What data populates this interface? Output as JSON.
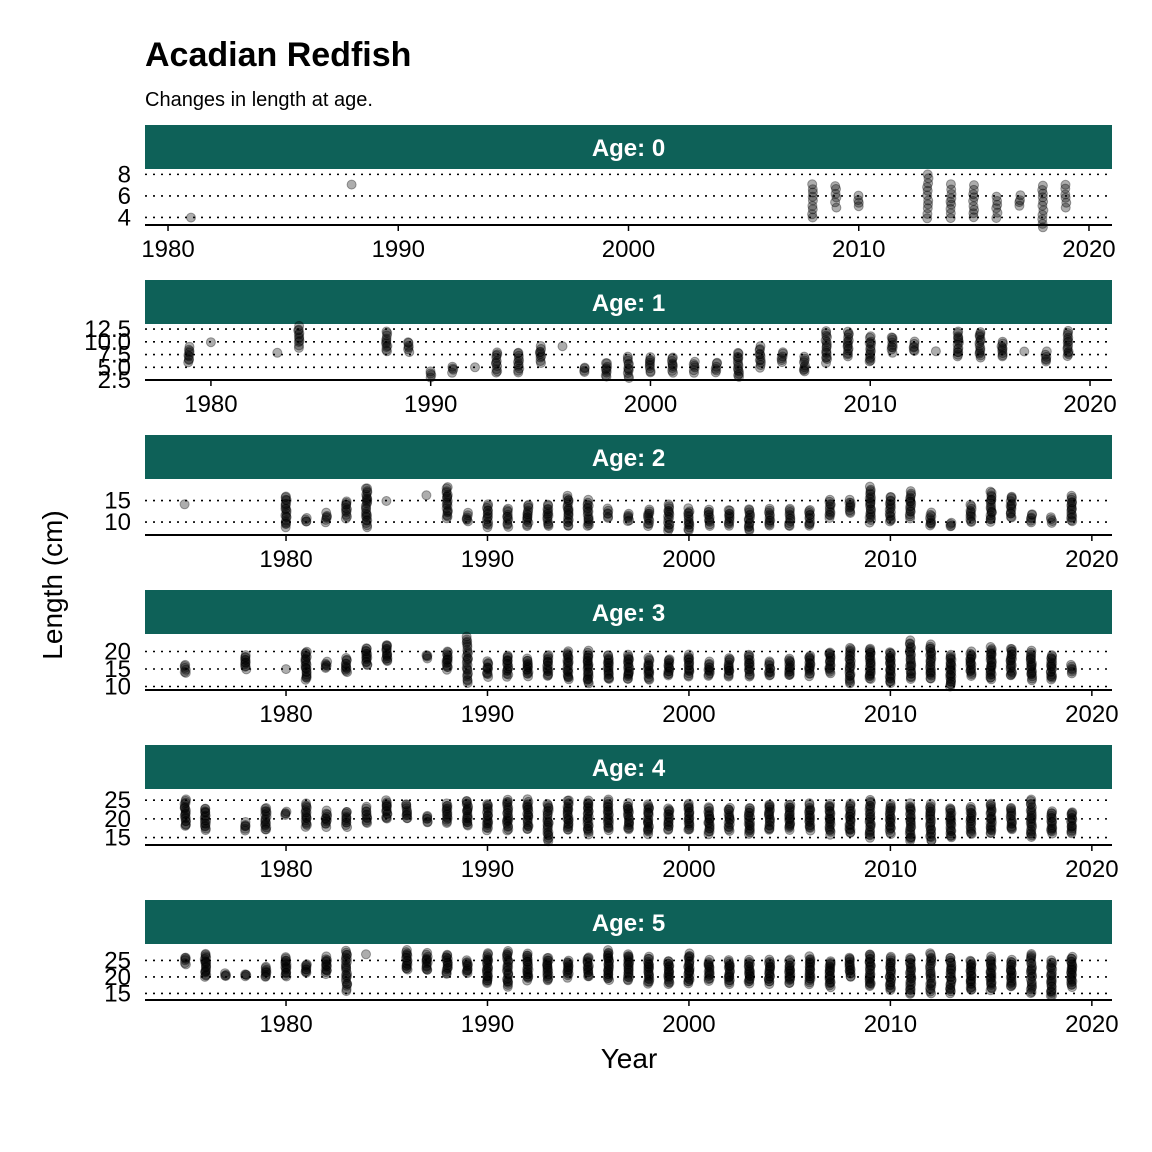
{
  "chart_data": {
    "type": "scatter",
    "title": "Acadian Redfish",
    "subtitle": "Changes in length at age.",
    "xlabel": "Year",
    "ylabel": "Length (cm)",
    "grid": "horizontal dotted",
    "strip_color": "#0E6158",
    "point_color": "#000000",
    "panels": [
      {
        "label": "Age: 0",
        "xlim": [
          1979,
          2021
        ],
        "ylim": [
          3.3,
          8.5
        ],
        "xticks": [
          1980,
          1990,
          2000,
          2010,
          2020
        ],
        "yticks": [
          4,
          6,
          8
        ],
        "ytick_labels": [
          "4",
          "6",
          "8"
        ],
        "years": [
          1981,
          1988,
          2008,
          2009,
          2010,
          2013,
          2014,
          2015,
          2016,
          2017,
          2018,
          2019
        ],
        "mins": [
          4,
          7,
          4,
          5,
          5,
          4,
          4,
          4,
          4,
          5,
          3,
          5
        ],
        "maxs": [
          4,
          7,
          7,
          7,
          6,
          8,
          7,
          7,
          6,
          6,
          7,
          7
        ]
      },
      {
        "label": "Age: 1",
        "xlim": [
          1977,
          2021
        ],
        "ylim": [
          2.5,
          13.5
        ],
        "xticks": [
          1980,
          1990,
          2000,
          2010,
          2020
        ],
        "yticks": [
          2.5,
          5.0,
          7.5,
          10.0,
          12.5
        ],
        "ytick_labels": [
          "2.5",
          "5.0",
          "7.5",
          "10.0",
          "12.5"
        ],
        "years": [
          1979,
          1980,
          1983,
          1984,
          1988,
          1989,
          1990,
          1991,
          1992,
          1993,
          1994,
          1995,
          1996,
          1997,
          1998,
          1999,
          2000,
          2001,
          2002,
          2003,
          2004,
          2005,
          2006,
          2007,
          2008,
          2009,
          2010,
          2011,
          2012,
          2013,
          2014,
          2015,
          2016,
          2017,
          2018,
          2019
        ],
        "mins": [
          6,
          10,
          8,
          9,
          8,
          8,
          3,
          4,
          5,
          4,
          4,
          6,
          9,
          4,
          3,
          3,
          4,
          4,
          4,
          4,
          3,
          5,
          6,
          4,
          6,
          7,
          6,
          8,
          8,
          8,
          7,
          7,
          7,
          8,
          6,
          7
        ],
        "maxs": [
          9,
          10,
          8,
          13,
          12,
          10,
          4,
          5,
          5,
          8,
          8,
          9,
          9,
          5,
          6,
          7,
          7,
          7,
          6,
          6,
          8,
          9,
          8,
          7,
          12,
          12,
          11,
          11,
          10,
          8,
          12,
          12,
          10,
          8,
          8,
          12
        ]
      },
      {
        "label": "Age: 2",
        "xlim": [
          1973,
          2021
        ],
        "ylim": [
          7,
          20
        ],
        "xticks": [
          1980,
          1990,
          2000,
          2010,
          2020
        ],
        "yticks": [
          10,
          15
        ],
        "ytick_labels": [
          "10",
          "15"
        ],
        "years": [
          1975,
          1980,
          1981,
          1982,
          1983,
          1984,
          1985,
          1987,
          1988,
          1989,
          1990,
          1991,
          1992,
          1993,
          1994,
          1995,
          1996,
          1997,
          1998,
          1999,
          2000,
          2001,
          2002,
          2003,
          2004,
          2005,
          2006,
          2007,
          2008,
          2009,
          2010,
          2011,
          2012,
          2013,
          2014,
          2015,
          2016,
          2017,
          2018,
          2019
        ],
        "mins": [
          14,
          9,
          10,
          10,
          11,
          9,
          15,
          16,
          11,
          10,
          9,
          9,
          9,
          9,
          9,
          9,
          11,
          10,
          9,
          8,
          8,
          9,
          9,
          8,
          9,
          9,
          9,
          11,
          12,
          10,
          10,
          11,
          9,
          9,
          10,
          10,
          11,
          10,
          10,
          10
        ],
        "maxs": [
          14,
          16,
          11,
          12,
          15,
          18,
          15,
          16,
          18,
          12,
          14,
          13,
          14,
          14,
          16,
          15,
          13,
          12,
          13,
          14,
          13,
          13,
          13,
          13,
          13,
          13,
          13,
          15,
          15,
          18,
          16,
          17,
          12,
          10,
          14,
          17,
          16,
          12,
          11,
          16
        ]
      },
      {
        "label": "Age: 3",
        "xlim": [
          1973,
          2021
        ],
        "ylim": [
          9,
          25
        ],
        "xticks": [
          1980,
          1990,
          2000,
          2010,
          2020
        ],
        "yticks": [
          10,
          15,
          20
        ],
        "ytick_labels": [
          "10",
          "15",
          "20"
        ],
        "years": [
          1975,
          1978,
          1980,
          1981,
          1982,
          1983,
          1984,
          1985,
          1987,
          1988,
          1989,
          1990,
          1991,
          1992,
          1993,
          1994,
          1995,
          1996,
          1997,
          1998,
          1999,
          2000,
          2001,
          2002,
          2003,
          2004,
          2005,
          2006,
          2007,
          2008,
          2009,
          2010,
          2011,
          2012,
          2013,
          2014,
          2015,
          2016,
          2017,
          2018,
          2019
        ],
        "mins": [
          14,
          15,
          15,
          12,
          15,
          14,
          16,
          17,
          18,
          15,
          11,
          13,
          13,
          13,
          13,
          12,
          11,
          12,
          12,
          12,
          13,
          13,
          13,
          13,
          13,
          13,
          13,
          13,
          14,
          11,
          12,
          11,
          12,
          12,
          10,
          13,
          12,
          13,
          12,
          12,
          14
        ],
        "maxs": [
          16,
          19,
          15,
          20,
          17,
          18,
          21,
          22,
          19,
          20,
          24,
          17,
          19,
          18,
          19,
          20,
          20,
          19,
          19,
          18,
          18,
          19,
          17,
          18,
          19,
          17,
          18,
          19,
          20,
          21,
          21,
          20,
          23,
          22,
          19,
          20,
          21,
          21,
          20,
          19,
          16
        ]
      },
      {
        "label": "Age: 4",
        "xlim": [
          1973,
          2021
        ],
        "ylim": [
          13,
          28
        ],
        "xticks": [
          1980,
          1990,
          2000,
          2010,
          2020
        ],
        "yticks": [
          15,
          20,
          25
        ],
        "ytick_labels": [
          "15",
          "20",
          "25"
        ],
        "years": [
          1975,
          1976,
          1978,
          1979,
          1980,
          1981,
          1982,
          1983,
          1984,
          1985,
          1986,
          1987,
          1988,
          1989,
          1990,
          1991,
          1992,
          1993,
          1994,
          1995,
          1996,
          1997,
          1998,
          1999,
          2000,
          2001,
          2002,
          2003,
          2004,
          2005,
          2006,
          2007,
          2008,
          2009,
          2010,
          2011,
          2012,
          2013,
          2014,
          2015,
          2016,
          2017,
          2018,
          2019
        ],
        "mins": [
          18,
          17,
          17,
          17,
          21,
          18,
          18,
          18,
          19,
          20,
          20,
          19,
          19,
          18,
          17,
          17,
          17,
          14,
          17,
          16,
          17,
          17,
          16,
          17,
          17,
          16,
          17,
          16,
          17,
          17,
          17,
          16,
          16,
          15,
          16,
          14,
          14,
          15,
          16,
          16,
          17,
          15,
          16,
          16
        ],
        "maxs": [
          25,
          23,
          19,
          23,
          22,
          24,
          22,
          22,
          23,
          25,
          24,
          21,
          24,
          25,
          24,
          25,
          25,
          24,
          25,
          25,
          25,
          24,
          24,
          23,
          24,
          23,
          23,
          23,
          24,
          24,
          24,
          24,
          24,
          25,
          24,
          24,
          24,
          23,
          23,
          24,
          23,
          25,
          22,
          22
        ]
      },
      {
        "label": "Age: 5",
        "xlim": [
          1973,
          2021
        ],
        "ylim": [
          13,
          30
        ],
        "xticks": [
          1980,
          1990,
          2000,
          2010,
          2020
        ],
        "yticks": [
          15,
          20,
          25
        ],
        "ytick_labels": [
          "15",
          "20",
          "25"
        ],
        "years": [
          1975,
          1976,
          1977,
          1978,
          1979,
          1980,
          1981,
          1982,
          1983,
          1984,
          1986,
          1987,
          1988,
          1989,
          1990,
          1991,
          1992,
          1993,
          1994,
          1995,
          1996,
          1997,
          1998,
          1999,
          2000,
          2001,
          2002,
          2003,
          2004,
          2005,
          2006,
          2007,
          2008,
          2009,
          2010,
          2011,
          2012,
          2013,
          2014,
          2015,
          2016,
          2017,
          2018,
          2019
        ],
        "mins": [
          24,
          20,
          20,
          20,
          20,
          20,
          21,
          21,
          16,
          27,
          22,
          22,
          21,
          21,
          18,
          17,
          19,
          19,
          20,
          20,
          19,
          19,
          18,
          18,
          18,
          19,
          18,
          18,
          18,
          18,
          18,
          17,
          20,
          17,
          16,
          15,
          15,
          15,
          16,
          16,
          17,
          15,
          14,
          17
        ],
        "maxs": [
          26,
          27,
          21,
          21,
          23,
          26,
          24,
          26,
          28,
          27,
          28,
          27,
          27,
          25,
          27,
          28,
          27,
          26,
          25,
          26,
          28,
          27,
          26,
          25,
          27,
          25,
          25,
          25,
          25,
          25,
          26,
          25,
          26,
          27,
          26,
          26,
          27,
          26,
          25,
          26,
          25,
          27,
          25,
          26
        ]
      }
    ]
  }
}
